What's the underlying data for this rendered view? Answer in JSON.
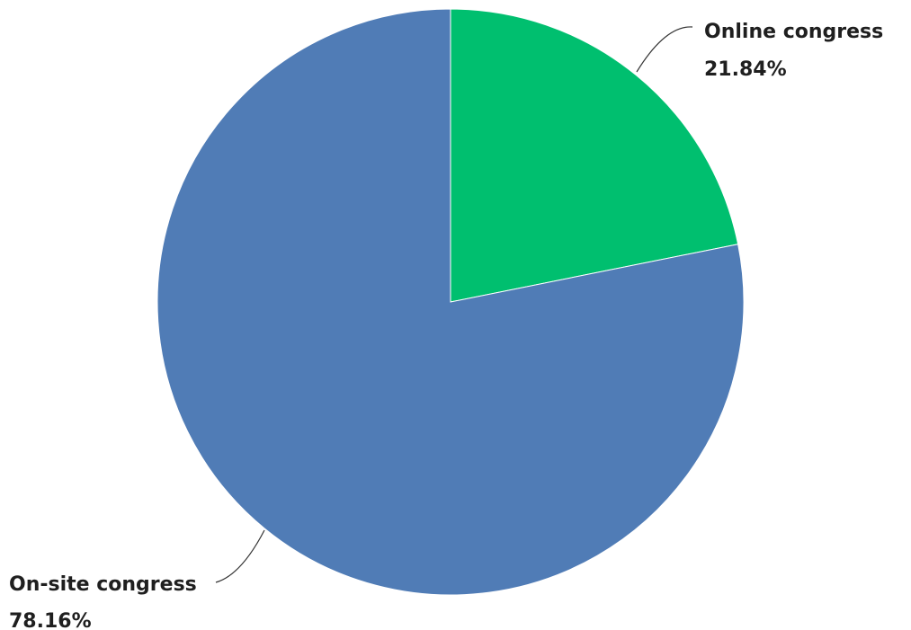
{
  "chart_data": {
    "type": "pie",
    "slices": [
      {
        "name": "Online congress",
        "value": 21.84,
        "value_label": "21.84%",
        "color": "#00BF6F"
      },
      {
        "name": "On-site congress",
        "value": 78.16,
        "value_label": "78.16%",
        "color": "#507CB6"
      }
    ],
    "start_angle": "12 o'clock",
    "direction": "clockwise",
    "legend": "none",
    "labels": "outside with leader lines"
  }
}
